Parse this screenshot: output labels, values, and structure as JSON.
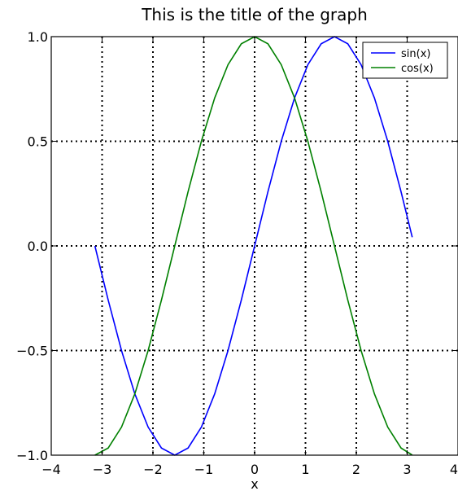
{
  "chart_data": {
    "type": "line",
    "title": "This is the title of the graph",
    "xlabel": "x",
    "ylabel": "",
    "xlim": [
      -4,
      4
    ],
    "ylim": [
      -1.0,
      1.0
    ],
    "xticks": [
      -4,
      -3,
      -2,
      -1,
      0,
      1,
      2,
      3,
      4
    ],
    "xtick_labels": [
      "−4",
      "−3",
      "−2",
      "−1",
      "0",
      "1",
      "2",
      "3",
      "4"
    ],
    "yticks": [
      -1.0,
      -0.5,
      0.0,
      0.5,
      1.0
    ],
    "ytick_labels": [
      "−1.0",
      "−0.5",
      "0.0",
      "0.5",
      "1.0"
    ],
    "grid": true,
    "legend_position": "top-right",
    "x": [
      -3.1416,
      -2.8798,
      -2.618,
      -2.3562,
      -2.0944,
      -1.8326,
      -1.5708,
      -1.309,
      -1.0472,
      -0.7854,
      -0.5236,
      -0.2618,
      0.0,
      0.2618,
      0.5236,
      0.7854,
      1.0472,
      1.309,
      1.5708,
      1.8326,
      2.0944,
      2.3562,
      2.618,
      2.8798,
      3.1
    ],
    "series": [
      {
        "name": "sin(x)",
        "color": "#0000ff",
        "values": [
          0.0,
          -0.2588,
          -0.5,
          -0.7071,
          -0.866,
          -0.9659,
          -1.0,
          -0.9659,
          -0.866,
          -0.7071,
          -0.5,
          -0.2588,
          0.0,
          0.2588,
          0.5,
          0.7071,
          0.866,
          0.9659,
          1.0,
          0.9659,
          0.866,
          0.7071,
          0.5,
          0.2588,
          0.0416
        ]
      },
      {
        "name": "cos(x)",
        "color": "#008000",
        "values": [
          -1.0,
          -0.9659,
          -0.866,
          -0.7071,
          -0.5,
          -0.2588,
          0.0,
          0.2588,
          0.5,
          0.7071,
          0.866,
          0.9659,
          1.0,
          0.9659,
          0.866,
          0.7071,
          0.5,
          0.2588,
          0.0,
          -0.2588,
          -0.5,
          -0.7071,
          -0.866,
          -0.9659,
          -0.9991
        ]
      }
    ]
  }
}
